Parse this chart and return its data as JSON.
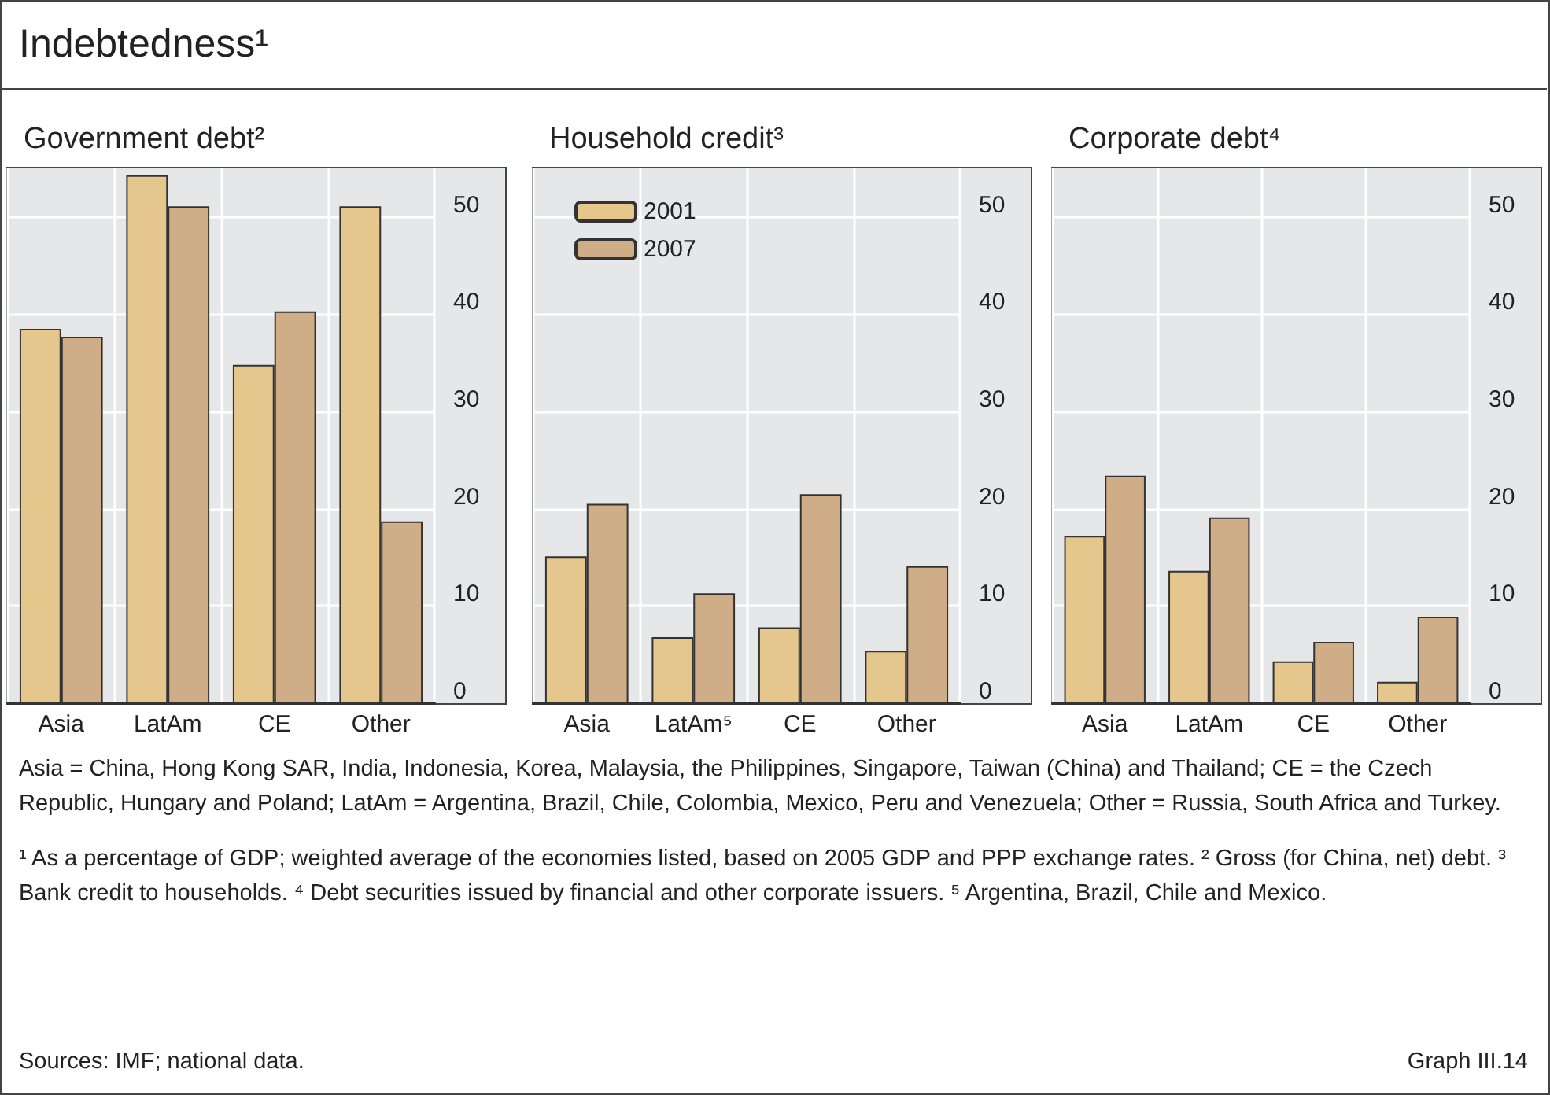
{
  "chart_data": [
    {
      "type": "other",
      "title": "Indebtedness¹",
      "annotations": [
        "Asia = China, Hong Kong SAR, India, Indonesia, Korea, Malaysia, the Philippines, Singapore, Taiwan (China) and Thailand; CE = the Czech Republic, Hungary and Poland; LatAm = Argentina, Brazil, Chile, Colombia, Mexico, Peru and Venezuela; Other = Russia, South Africa and Turkey.",
        "¹ As a percentage of GDP; weighted average of the economies listed, based on 2005 GDP and PPP exchange rates.   ² Gross (for China, net) debt.   ³ Bank credit to households.   ⁴ Debt securities issued by financial and other corporate issuers.   ⁵ Argentina, Brazil, Chile and Mexico.",
        "Sources: IMF; national data.",
        "Graph III.14"
      ]
    },
    {
      "type": "bar",
      "title": "Government debt²",
      "categories": [
        "Asia",
        "LatAm",
        "CE",
        "Other"
      ],
      "series": [
        {
          "color": "#e5c78d",
          "values": [
            38.5,
            54.3,
            34.8,
            51.1
          ]
        },
        {
          "color": "#cfad87",
          "values": [
            37.7,
            51.1,
            40.3,
            18.7
          ]
        }
      ],
      "ylim": [
        0,
        55
      ],
      "yticks": [
        0,
        10,
        20,
        30,
        40,
        50
      ],
      "grid": true
    },
    {
      "type": "bar",
      "title": "Household credit³",
      "categories": [
        "Asia",
        "LatAm⁵",
        "CE",
        "Other"
      ],
      "series": [
        {
          "name": "2001",
          "color": "#e5c78d",
          "values": [
            15.1,
            6.8,
            7.8,
            5.4
          ]
        },
        {
          "name": "2007",
          "color": "#cfad87",
          "values": [
            20.5,
            11.3,
            21.5,
            14.1
          ]
        }
      ],
      "ylim": [
        0,
        55
      ],
      "yticks": [
        0,
        10,
        20,
        30,
        40,
        50
      ],
      "grid": true,
      "legend": "top left"
    },
    {
      "type": "bar",
      "title": "Corporate debt⁴",
      "categories": [
        "Asia",
        "LatAm",
        "CE",
        "Other"
      ],
      "series": [
        {
          "color": "#e5c78d",
          "values": [
            17.2,
            13.6,
            4.3,
            2.2
          ]
        },
        {
          "color": "#cfad87",
          "values": [
            23.4,
            19.1,
            6.3,
            8.9
          ]
        }
      ],
      "ylim": [
        0,
        55
      ],
      "yticks": [
        0,
        10,
        20,
        30,
        40,
        50
      ],
      "grid": true
    }
  ]
}
